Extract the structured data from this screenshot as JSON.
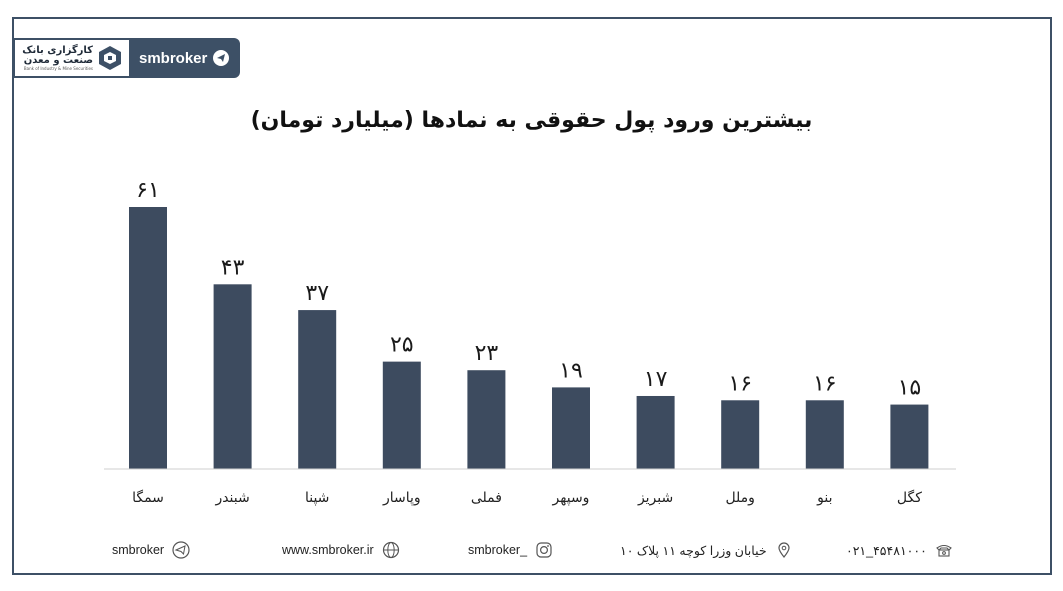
{
  "brand": {
    "logo_line1": "کارگزاری بانک",
    "logo_line2": "صنعت و معدن",
    "logo_line3": "Bank of Industry & Mine Securities",
    "channel_name": "smbroker",
    "accent_color": "#3d5066",
    "bar_color": "#3d4b5f"
  },
  "chart_data": {
    "type": "bar",
    "title": "بیشترین ورود پول حقوقی به نمادها (میلیارد تومان)",
    "categories": [
      "سمگا",
      "شبندر",
      "شپنا",
      "وپاسار",
      "فملی",
      "وسپهر",
      "شبریز",
      "وملل",
      "بنو",
      "کگل"
    ],
    "values": [
      61,
      43,
      37,
      25,
      23,
      19,
      17,
      16,
      16,
      15
    ],
    "value_labels": [
      "۶۱",
      "۴۳",
      "۳۷",
      "۲۵",
      "۲۳",
      "۱۹",
      "۱۷",
      "۱۶",
      "۱۶",
      "۱۵"
    ],
    "xlabel": "",
    "ylabel": "",
    "ylim": [
      0,
      61
    ],
    "grid": false,
    "legend": "none"
  },
  "footer": {
    "telegram": "smbroker",
    "website": "www.smbroker.ir",
    "instagram": "smbroker_",
    "address": "خیابان وزرا کوچه ۱۱ پلاک ۱۰",
    "phone": "۰۲۱_۴۵۴۸۱۰۰۰"
  },
  "icons": {
    "logo": "cube-logo-icon",
    "telegram": "telegram-icon",
    "website": "globe-icon",
    "instagram": "instagram-icon",
    "address": "location-pin-icon",
    "phone": "phone-icon"
  }
}
